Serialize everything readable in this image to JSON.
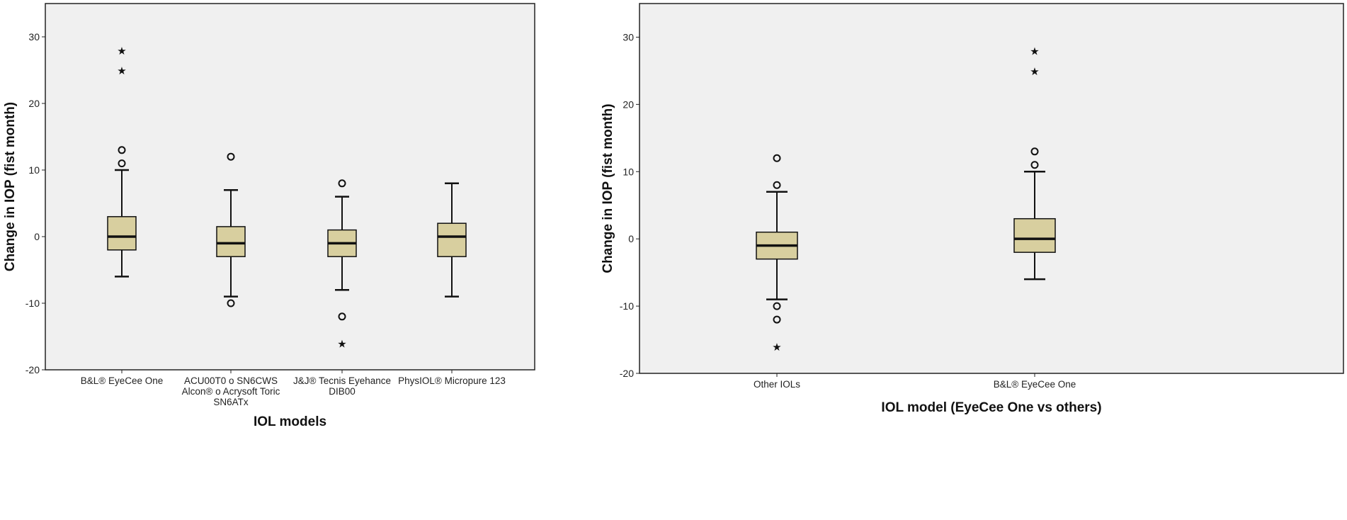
{
  "colors": {
    "plot_background": "#f0f0f0",
    "box_fill": "#d8cf9f",
    "stroke": "#111111"
  },
  "chart_data": [
    {
      "type": "box",
      "ylabel": "Change in IOP (fist month)",
      "xlabel": "IOL models",
      "ylim": [
        -20,
        35
      ],
      "yticks": [
        -20,
        -10,
        0,
        10,
        20,
        30
      ],
      "grid": false,
      "categories": [
        [
          "B&L® EyeCee One"
        ],
        [
          "ACU00T0 o SN6CWS",
          "Alcon® o Acrysoft Toric",
          "SN6ATx"
        ],
        [
          "J&J® Tecnis Eyehance",
          "DIB00"
        ],
        [
          "PhysIOL® Micropure 123"
        ]
      ],
      "boxes": [
        {
          "whisker_low": -6,
          "q1": -2,
          "median": 0,
          "q3": 3,
          "whisker_high": 10,
          "outliers": [
            11,
            13
          ],
          "extremes": [
            25,
            28
          ]
        },
        {
          "whisker_low": -9,
          "q1": -3,
          "median": -1,
          "q3": 1.5,
          "whisker_high": 7,
          "outliers": [
            -10,
            12
          ],
          "extremes": []
        },
        {
          "whisker_low": -8,
          "q1": -3,
          "median": -1,
          "q3": 1,
          "whisker_high": 6,
          "outliers": [
            -12,
            8
          ],
          "extremes": [
            -16
          ]
        },
        {
          "whisker_low": -9,
          "q1": -3,
          "median": 0,
          "q3": 2,
          "whisker_high": 8,
          "outliers": [],
          "extremes": []
        }
      ]
    },
    {
      "type": "box",
      "ylabel": "Change in IOP (fist month)",
      "xlabel": "IOL model (EyeCee One vs others)",
      "ylim": [
        -20,
        35
      ],
      "yticks": [
        -20,
        -10,
        0,
        10,
        20,
        30
      ],
      "grid": false,
      "categories": [
        [
          "Other IOLs"
        ],
        [
          "B&L® EyeCee One"
        ]
      ],
      "boxes": [
        {
          "whisker_low": -9,
          "q1": -3,
          "median": -1,
          "q3": 1,
          "whisker_high": 7,
          "outliers": [
            -12,
            -10,
            8,
            12
          ],
          "extremes": [
            -16
          ]
        },
        {
          "whisker_low": -6,
          "q1": -2,
          "median": 0,
          "q3": 3,
          "whisker_high": 10,
          "outliers": [
            11,
            13
          ],
          "extremes": [
            25,
            28
          ]
        }
      ]
    }
  ]
}
